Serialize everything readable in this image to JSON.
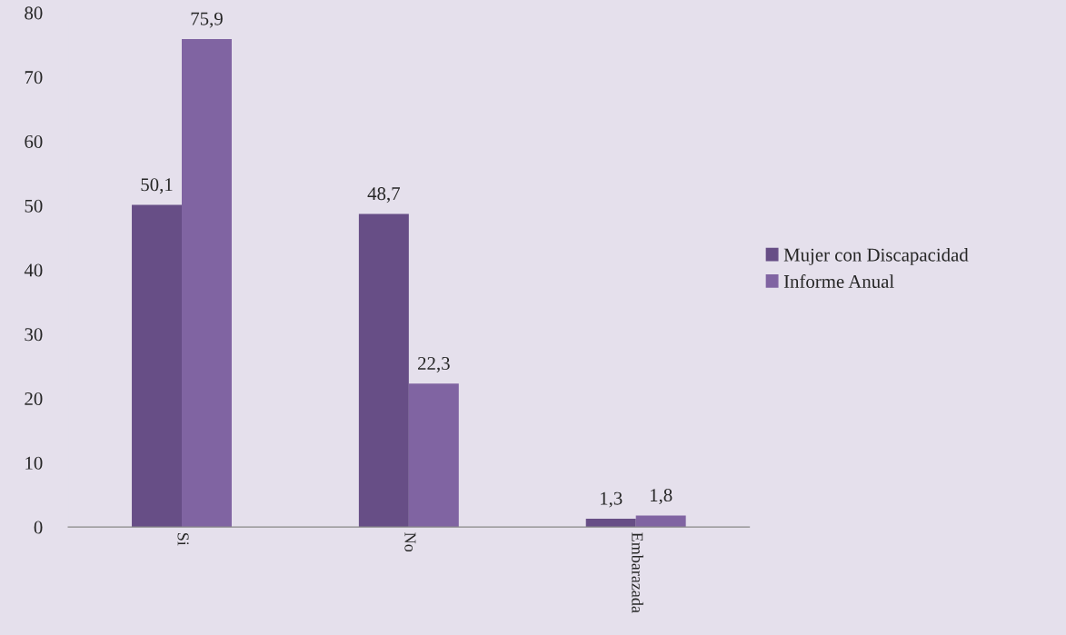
{
  "chart_data": {
    "type": "bar",
    "categories": [
      "Si",
      "No",
      "Embarazada"
    ],
    "series": [
      {
        "name": "Mujer con Discapacidad",
        "color": "#674e86",
        "values": [
          50.1,
          48.7,
          1.3
        ],
        "value_labels": [
          "50,1",
          "48,7",
          "1,3"
        ]
      },
      {
        "name": "Informe Anual",
        "color": "#8064a2",
        "values": [
          75.9,
          22.3,
          1.8
        ],
        "value_labels": [
          "75,9",
          "22,3",
          "1,8"
        ]
      }
    ],
    "ylim": [
      0,
      80
    ],
    "yticks": [
      0,
      10,
      20,
      30,
      40,
      50,
      60,
      70,
      80
    ],
    "grid": false,
    "legend": "right"
  }
}
